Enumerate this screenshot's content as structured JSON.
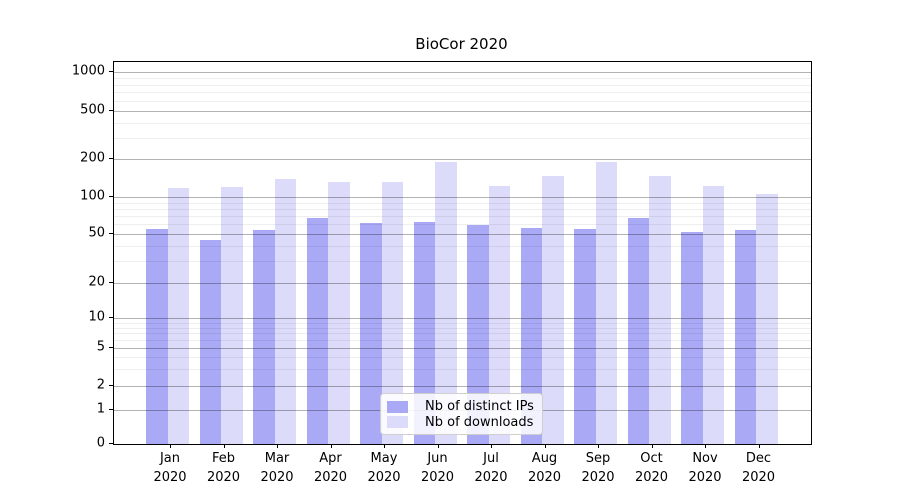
{
  "title": "BioCor 2020",
  "chart_data": {
    "type": "bar",
    "title": "BioCor 2020",
    "categories": [
      "Jan 2020",
      "Feb 2020",
      "Mar 2020",
      "Apr 2020",
      "May 2020",
      "Jun 2020",
      "Jul 2020",
      "Aug 2020",
      "Sep 2020",
      "Oct 2020",
      "Nov 2020",
      "Dec 2020"
    ],
    "series": [
      {
        "name": "Nb of distinct IPs",
        "color": "#a9a9f6",
        "values": [
          55,
          45,
          54,
          67,
          61,
          63,
          59,
          56,
          55,
          68,
          52,
          54
        ]
      },
      {
        "name": "Nb of downloads",
        "color": "#dcdcfa",
        "values": [
          117,
          121,
          139,
          132,
          131,
          190,
          123,
          147,
          188,
          146,
          123,
          106
        ]
      }
    ],
    "yscale": "symlog",
    "yticks": [
      0,
      1,
      2,
      5,
      10,
      20,
      50,
      100,
      200,
      500,
      1000
    ],
    "ylim": [
      0,
      1100
    ],
    "xlabel": "",
    "ylabel": "",
    "grid": true,
    "legend_position": "lower center"
  },
  "colors": {
    "grid_major": "#b2b2b2",
    "grid_minor": "#ececec",
    "axis": "#000000",
    "legend_border": "#cfcfcf"
  }
}
